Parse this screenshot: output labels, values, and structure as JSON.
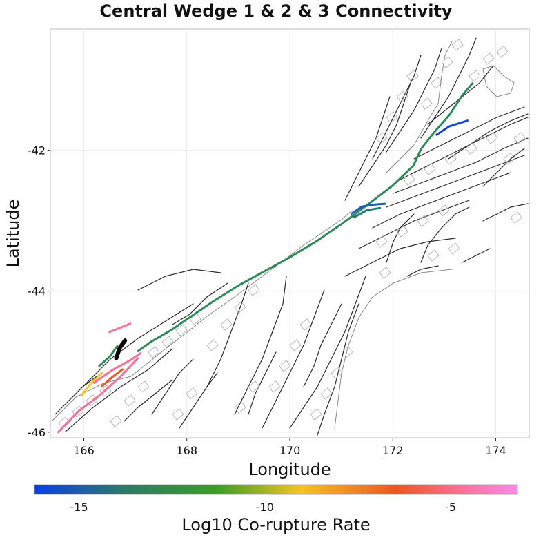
{
  "chart_data": {
    "type": "map",
    "title": "Central Wedge 1 & 2 & 3 Connectivity",
    "xlabel": "Longitude",
    "ylabel": "Latitude",
    "xlim": [
      165.35,
      174.65
    ],
    "ylim": [
      -46.08,
      -40.28
    ],
    "xticks": [
      "166",
      "168",
      "170",
      "172",
      "174"
    ],
    "xtick_values": [
      166,
      168,
      170,
      172,
      174
    ],
    "yticks": [
      "-42",
      "-44",
      "-46"
    ],
    "ytick_values": [
      -42,
      -44,
      -46
    ],
    "grid": true,
    "colorbar": {
      "title": "Log10 Co-rupture Rate",
      "range": [
        -16.2,
        -3.2
      ],
      "ticks": [
        "-15",
        "-10",
        "-5"
      ],
      "tick_values": [
        -15,
        -10,
        -5
      ],
      "placement": "bottom",
      "colors": [
        "#0b3fe8",
        "#2a8a58",
        "#3d9e26",
        "#f2c421",
        "#ee5522",
        "#fb6f95",
        "#f78aea"
      ]
    },
    "series": [
      {
        "role": "source",
        "color": "#2e8b57",
        "points": [
          [
            167.05,
            -44.85
          ],
          [
            167.3,
            -44.72
          ],
          [
            167.7,
            -44.55
          ],
          [
            168.1,
            -44.35
          ],
          [
            168.5,
            -44.15
          ],
          [
            169.0,
            -43.92
          ],
          [
            169.5,
            -43.72
          ],
          [
            170.0,
            -43.52
          ],
          [
            170.5,
            -43.3
          ],
          [
            171.0,
            -43.05
          ],
          [
            171.5,
            -42.78
          ],
          [
            172.0,
            -42.5
          ],
          [
            172.4,
            -42.22
          ],
          [
            172.55,
            -41.98
          ],
          [
            172.8,
            -41.75
          ],
          [
            173.1,
            -41.5
          ],
          [
            173.35,
            -41.22
          ],
          [
            173.55,
            -41.05
          ]
        ]
      },
      {
        "log10_rate": -15.5,
        "color": "#1547d4",
        "points": [
          [
            172.85,
            -41.78
          ],
          [
            173.1,
            -41.66
          ],
          [
            173.45,
            -41.58
          ]
        ]
      },
      {
        "log10_rate": -15.0,
        "color": "#1a5fb4",
        "points": [
          [
            171.2,
            -42.9
          ],
          [
            171.4,
            -42.8
          ],
          [
            171.65,
            -42.77
          ],
          [
            171.85,
            -42.76
          ]
        ]
      },
      {
        "log10_rate": -14.3,
        "color": "#1f7a78",
        "points": [
          [
            171.25,
            -42.95
          ],
          [
            171.5,
            -42.85
          ],
          [
            171.75,
            -42.82
          ]
        ]
      },
      {
        "log10_rate": -13.0,
        "color": "#2e8b57",
        "points": [
          [
            166.3,
            -45.06
          ],
          [
            166.5,
            -44.93
          ],
          [
            166.65,
            -44.78
          ]
        ]
      },
      {
        "log10_rate": -9.8,
        "color": "#f2c421",
        "points": [
          [
            165.95,
            -45.48
          ],
          [
            166.15,
            -45.3
          ],
          [
            166.35,
            -45.16
          ]
        ]
      },
      {
        "log10_rate": -6.0,
        "color": "#ee5522",
        "points": [
          [
            166.35,
            -45.35
          ],
          [
            166.55,
            -45.22
          ],
          [
            166.75,
            -45.11
          ]
        ]
      },
      {
        "log10_rate": -5.0,
        "color": "#fb6f95",
        "points": [
          [
            165.5,
            -46.0
          ],
          [
            165.9,
            -45.7
          ],
          [
            166.3,
            -45.48
          ],
          [
            166.7,
            -45.22
          ],
          [
            167.05,
            -44.95
          ]
        ]
      },
      {
        "log10_rate": -5.0,
        "color": "#fb6f95",
        "points": [
          [
            166.2,
            -45.3
          ],
          [
            166.55,
            -45.12
          ],
          [
            166.9,
            -44.98
          ],
          [
            167.1,
            -44.88
          ]
        ]
      },
      {
        "log10_rate": -4.8,
        "color": "#fb6f95",
        "points": [
          [
            166.5,
            -44.58
          ],
          [
            166.7,
            -44.52
          ],
          [
            166.9,
            -44.46
          ]
        ]
      },
      {
        "role": "self",
        "color": "#000000",
        "points": [
          [
            166.63,
            -44.95
          ],
          [
            166.7,
            -44.8
          ],
          [
            166.8,
            -44.7
          ]
        ]
      }
    ]
  }
}
